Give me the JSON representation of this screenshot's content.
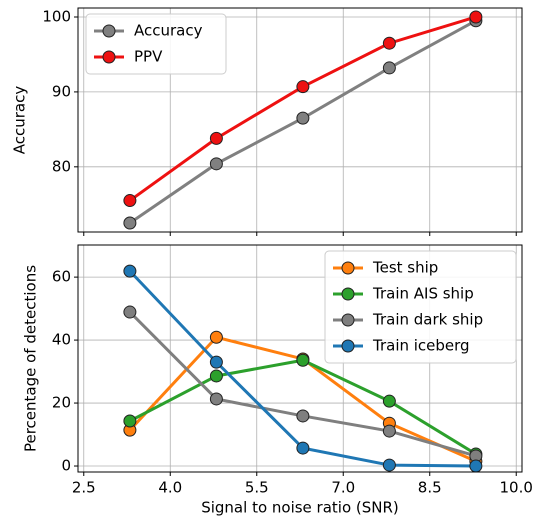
{
  "chart_data": [
    {
      "type": "line",
      "ylabel": "Accuracy",
      "x": [
        3.3,
        4.8,
        6.3,
        7.8,
        9.3
      ],
      "series": [
        {
          "name": "Accuracy",
          "color": "#808080",
          "values": [
            72.5,
            80.4,
            86.5,
            93.2,
            99.5
          ]
        },
        {
          "name": "PPV",
          "color": "#ee1111",
          "values": [
            75.5,
            83.8,
            90.7,
            96.5,
            100
          ]
        }
      ],
      "xlim": [
        2.4,
        10.1
      ],
      "xticks": [
        2.5,
        4,
        5.5,
        7,
        8.5,
        10
      ],
      "ylim": [
        71.3,
        101.2
      ],
      "yticks": [
        80,
        90,
        100
      ],
      "grid": true,
      "legend": "upper left"
    },
    {
      "type": "line",
      "ylabel": "Percentage of detections",
      "xlabel": "Signal to noise ratio (SNR)",
      "x": [
        3.3,
        4.8,
        6.3,
        7.8,
        9.3
      ],
      "series": [
        {
          "name": "Test ship",
          "color": "#ff7f0e",
          "values": [
            11.4,
            40.9,
            34,
            13.6,
            1.5
          ]
        },
        {
          "name": "Train AIS ship",
          "color": "#2ca02c",
          "values": [
            14.3,
            28.6,
            33.6,
            20.6,
            3.8
          ]
        },
        {
          "name": "Train dark ship",
          "color": "#7f7f7f",
          "values": [
            48.9,
            21.3,
            15.9,
            11.1,
            3.2
          ]
        },
        {
          "name": "Train iceberg",
          "color": "#1f77b4",
          "values": [
            61.9,
            33,
            5.7,
            0.3,
            0
          ]
        }
      ],
      "xlim": [
        2.4,
        10.1
      ],
      "xticks": [
        {
          "value": 2.5,
          "label": "2.5"
        },
        {
          "value": 4,
          "label": "4.0"
        },
        {
          "value": 5.5,
          "label": "5.5"
        },
        {
          "value": 7,
          "label": "7.0"
        },
        {
          "value": 8.5,
          "label": "8.5"
        },
        {
          "value": 10,
          "label": "10.0"
        }
      ],
      "ylim": [
        -1.9,
        70.2
      ],
      "yticks": [
        0,
        20,
        40,
        60
      ],
      "grid": true,
      "legend": "upper right"
    }
  ]
}
